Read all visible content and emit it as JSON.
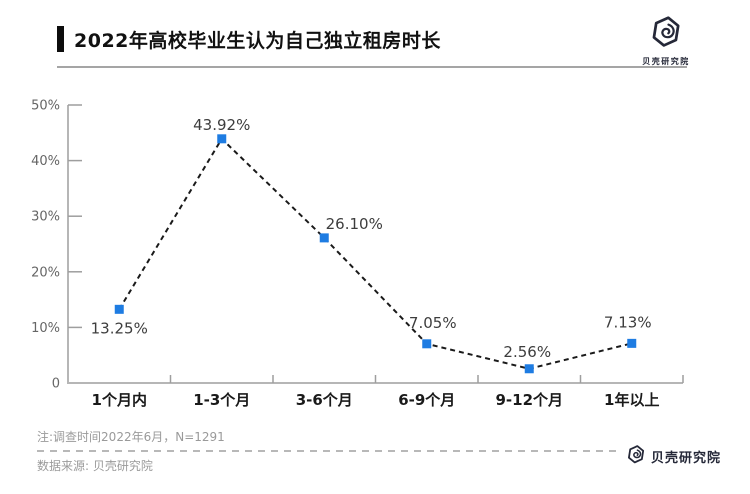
{
  "header": {
    "title": "2022年高校毕业生认为自己独立租房时长",
    "logo_text": "贝壳研究院"
  },
  "icons": {
    "header_logo": "beike-shell-logo",
    "footer_logo": "beike-shell-logo"
  },
  "chart_data": {
    "type": "line",
    "title": "2022年高校毕业生认为自己独立租房时长",
    "categories": [
      "1个月内",
      "1-3个月",
      "3-6个月",
      "6-9个月",
      "9-12个月",
      "1年以上"
    ],
    "values": [
      13.25,
      43.92,
      26.1,
      7.05,
      2.56,
      7.13
    ],
    "point_labels": [
      "13.25%",
      "43.92%",
      "26.10%",
      "7.05%",
      "2.56%",
      "7.13%"
    ],
    "xlabel": "",
    "ylabel": "",
    "ylim": [
      0,
      50
    ],
    "y_ticks": [
      "0",
      "10%",
      "20%",
      "30%",
      "40%",
      "50%"
    ],
    "grid": false,
    "legend": "none",
    "line_style": "dashed",
    "marker": "square",
    "colors": {
      "marker": "#1e7ce2",
      "line": "#1a1a1a",
      "axis": "#b6b6b6",
      "tick": "#9e9e9e",
      "data_label": "#3d3d3d",
      "y_tick_label": "#666666",
      "x_tick_label": "#1a1a1a"
    }
  },
  "footer": {
    "note": "注:调查时间2022年6月，N=1291",
    "source": "数据来源: 贝壳研究院",
    "logo_text": "贝壳研究院"
  }
}
